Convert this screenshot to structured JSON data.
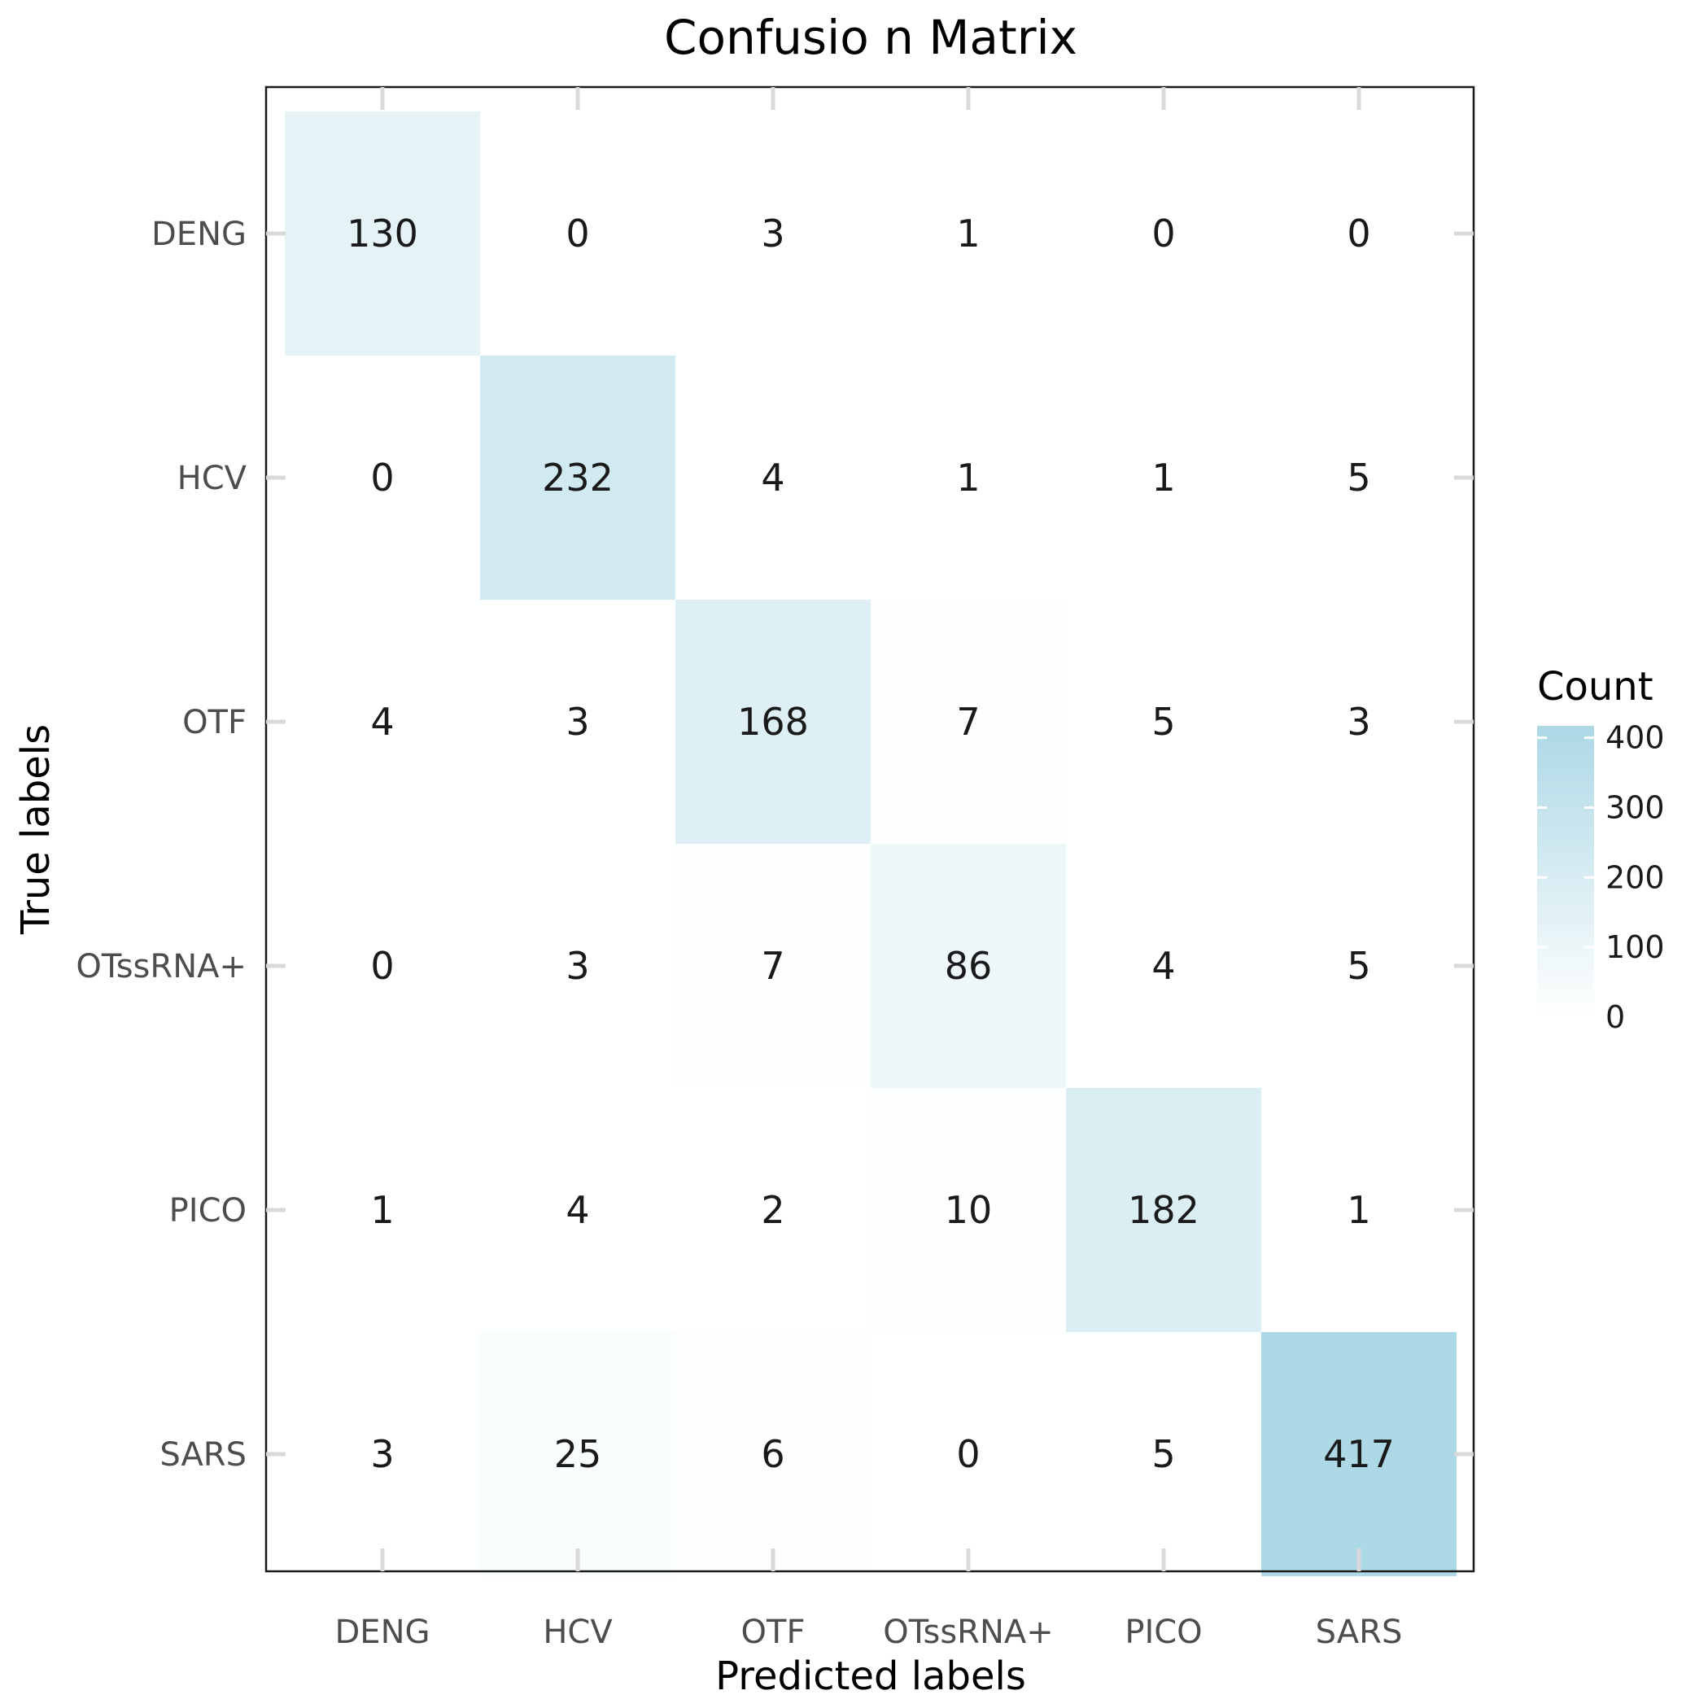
{
  "chart_data": {
    "type": "heatmap",
    "title": "Confusio  n Matrix",
    "xlabel": "Predicted labels",
    "ylabel": "True labels",
    "x_categories": [
      "DENG",
      "HCV",
      "OTF",
      "OTssRNA+",
      "PICO",
      "SARS"
    ],
    "y_categories": [
      "DENG",
      "HCV",
      "OTF",
      "OTssRNA+",
      "PICO",
      "SARS"
    ],
    "matrix": [
      [
        130,
        0,
        3,
        1,
        0,
        0
      ],
      [
        0,
        232,
        4,
        1,
        1,
        5
      ],
      [
        4,
        3,
        168,
        7,
        5,
        3
      ],
      [
        0,
        3,
        7,
        86,
        4,
        5
      ],
      [
        1,
        4,
        2,
        10,
        182,
        1
      ],
      [
        3,
        25,
        6,
        0,
        5,
        417
      ]
    ],
    "legend": {
      "title": "Count",
      "position": "right",
      "ticks": [
        400,
        300,
        200,
        100,
        0
      ],
      "range": [
        0,
        417
      ]
    },
    "colors": {
      "low": "#ffffff",
      "high": "#add8e6",
      "panel_border": "#1a1a1a",
      "tick_mark": "#d9d9d9"
    },
    "grid": false
  }
}
